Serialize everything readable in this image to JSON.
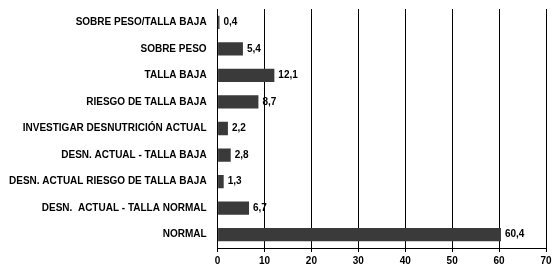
{
  "chart_data": {
    "type": "bar",
    "orientation": "horizontal",
    "categories": [
      "SOBRE PESO/TALLA BAJA",
      "SOBRE PESO",
      "TALLA BAJA",
      "RIESGO DE TALLA BAJA",
      "INVESTIGAR DESNUTRICIÓN ACTUAL",
      "DESN. ACTUAL - TALLA BAJA",
      "DESN. ACTUAL RIESGO DE TALLA BAJA",
      "DESN.  ACTUAL - TALLA NORMAL",
      "NORMAL"
    ],
    "values": [
      0.4,
      5.4,
      12.1,
      8.7,
      2.2,
      2.8,
      1.3,
      6.7,
      60.4
    ],
    "value_labels": [
      "0,4",
      "5,4",
      "12,1",
      "8,7",
      "2,2",
      "2,8",
      "1,3",
      "6,7",
      "60,4"
    ],
    "color": "#3a3a3a",
    "xlim": [
      0,
      70
    ],
    "xticks": [
      0,
      10,
      20,
      30,
      40,
      50,
      60,
      70
    ],
    "grid": true,
    "data_labels": true
  }
}
